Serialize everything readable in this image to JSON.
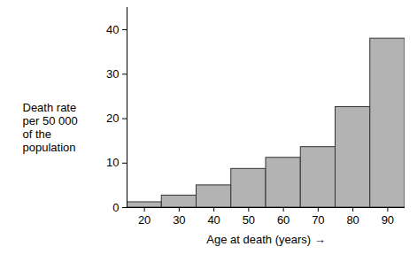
{
  "chart_data": {
    "type": "bar",
    "categories": [
      "20",
      "30",
      "40",
      "50",
      "60",
      "70",
      "80",
      "90"
    ],
    "values": [
      1.2,
      2.7,
      5,
      8.7,
      11.2,
      13.6,
      22.6,
      38
    ],
    "color": "#b3b3b3",
    "xlabel": "Age at death (years)",
    "ylabel": "Death rate per 50 000 of the population",
    "ylim": [
      0,
      45
    ],
    "yticks": [
      0,
      10,
      20,
      30,
      40
    ],
    "grid": false
  }
}
